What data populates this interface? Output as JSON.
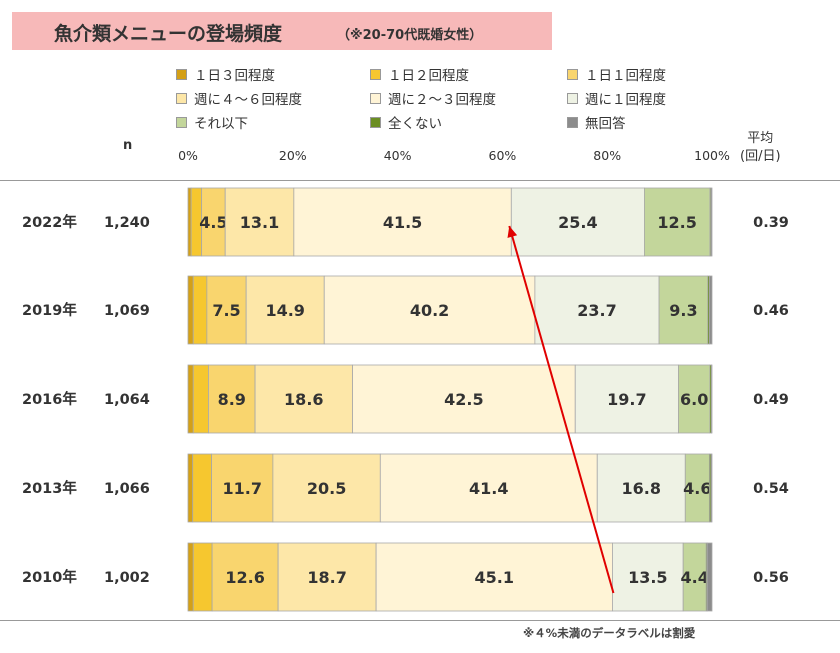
{
  "header": {
    "title": "魚介類メニューの登場頻度",
    "subtitle": "（※20-70代既婚女性）"
  },
  "columns": {
    "n_label": "n",
    "avg_label_line1": "平均",
    "avg_label_line2": "(回/日)"
  },
  "footnote": "※４%未満のデータラベルは割愛",
  "chart_data": {
    "type": "bar",
    "orientation": "horizontal",
    "stacked": true,
    "percent": true,
    "categories": [
      "2022年",
      "2019年",
      "2016年",
      "2013年",
      "2010年"
    ],
    "n": [
      "1,240",
      "1,069",
      "1,064",
      "1,066",
      "1,002"
    ],
    "averages": [
      "0.39",
      "0.46",
      "0.49",
      "0.54",
      "0.56"
    ],
    "x_ticks": [
      "0%",
      "20%",
      "40%",
      "60%",
      "80%",
      "100%"
    ],
    "xlim": [
      0,
      100
    ],
    "label_threshold": 4,
    "series": [
      {
        "name": "１日３回程度",
        "color": "#d4a017",
        "values": [
          0.6,
          1.0,
          1.0,
          0.9,
          1.0
        ]
      },
      {
        "name": "１日２回程度",
        "color": "#f6c72f",
        "values": [
          2.0,
          2.6,
          2.9,
          3.6,
          3.6
        ]
      },
      {
        "name": "１日１回程度",
        "color": "#f9d56e",
        "values": [
          4.5,
          7.5,
          8.9,
          11.7,
          12.6
        ]
      },
      {
        "name": "週に４～６回程度",
        "color": "#fde7a8",
        "values": [
          13.1,
          14.9,
          18.6,
          20.5,
          18.7
        ]
      },
      {
        "name": "週に２～３回程度",
        "color": "#fff4d6",
        "values": [
          41.5,
          40.2,
          42.5,
          41.4,
          45.1
        ]
      },
      {
        "name": "週に１回程度",
        "color": "#eef2e4",
        "values": [
          25.4,
          23.7,
          19.7,
          16.8,
          13.5
        ]
      },
      {
        "name": "それ以下",
        "color": "#c3d69b",
        "values": [
          12.5,
          9.3,
          6.0,
          4.6,
          4.4
        ]
      },
      {
        "name": "全くない",
        "color": "#6b8e23",
        "values": [
          0.2,
          0.3,
          0.3,
          0.3,
          0.2
        ]
      },
      {
        "name": "無回答",
        "color": "#8c8c8c",
        "values": [
          0.2,
          0.5,
          0.1,
          0.2,
          0.9
        ]
      }
    ],
    "annotation": {
      "type": "arrow",
      "color": "#e00000"
    }
  }
}
